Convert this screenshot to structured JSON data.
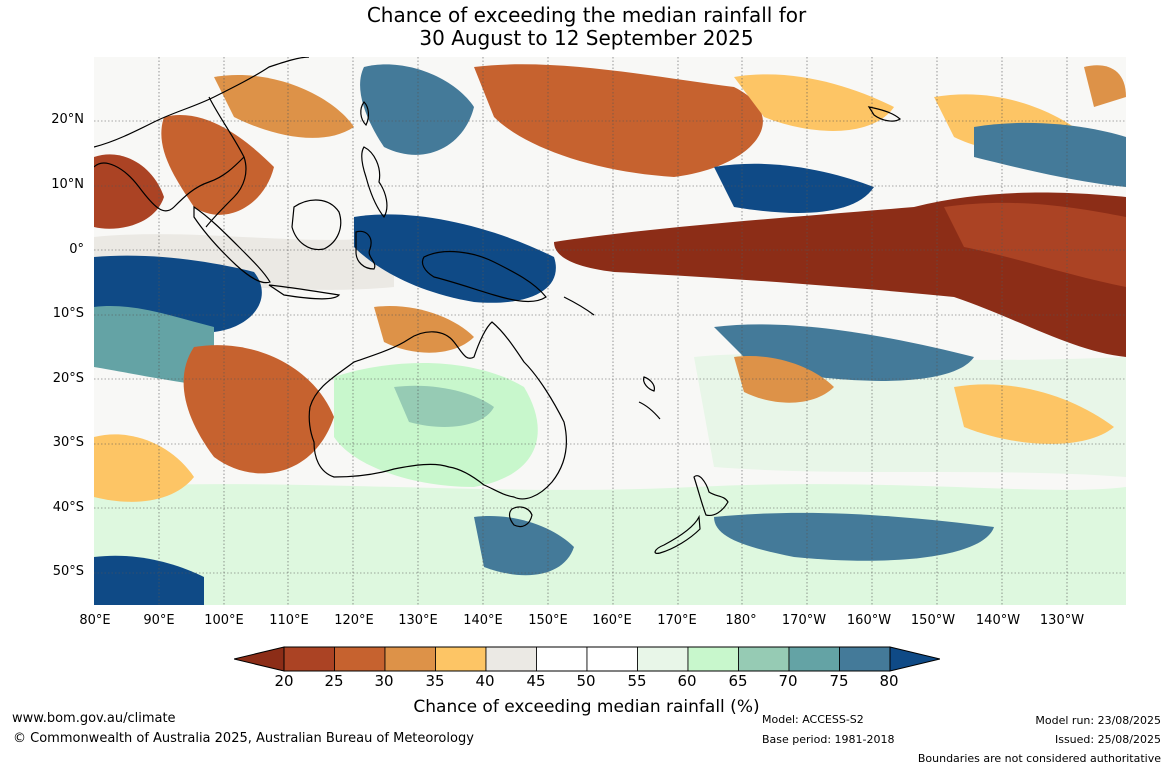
{
  "title": {
    "line1": "Chance of exceeding the median rainfall for",
    "line2": "30 August to 12 September 2025"
  },
  "map": {
    "lat_labels": [
      "20°N",
      "10°N",
      "0°",
      "10°S",
      "20°S",
      "30°S",
      "40°S",
      "50°S"
    ],
    "lon_labels": [
      "80°E",
      "90°E",
      "100°E",
      "110°E",
      "120°E",
      "130°E",
      "140°E",
      "150°E",
      "160°E",
      "170°E",
      "180°",
      "170°W",
      "160°W",
      "150°W",
      "140°W",
      "130°W"
    ],
    "bounds": {
      "lon_min": 80,
      "lon_max": 239,
      "lat_min": -55,
      "lat_max": 30
    }
  },
  "colorbar": {
    "ticks": [
      "20",
      "25",
      "30",
      "35",
      "40",
      "45",
      "50",
      "55",
      "60",
      "65",
      "70",
      "75",
      "80"
    ],
    "low_extend_color": "#8c2d17",
    "high_extend_color": "#0f4a86",
    "colors": [
      "#ab4324",
      "#c6622f",
      "#dd9248",
      "#fdc565",
      "#ebe9e4",
      "#ffffff",
      "#ffffff",
      "#e8f6e8",
      "#c8f7cc",
      "#96cbb4",
      "#64a3a5",
      "#447a99"
    ],
    "title": "Chance of exceeding median rainfall (%)"
  },
  "footer": {
    "website": "www.bom.gov.au/climate",
    "copyright": "© Commonwealth of Australia 2025, Australian Bureau of Meteorology",
    "model": "Model: ACCESS-S2",
    "base_period": "Base period: 1981-2018",
    "model_run": "Model run: 23/08/2025",
    "issued": "Issued: 25/08/2025",
    "disclaimer": "Boundaries are not considered authoritative"
  }
}
